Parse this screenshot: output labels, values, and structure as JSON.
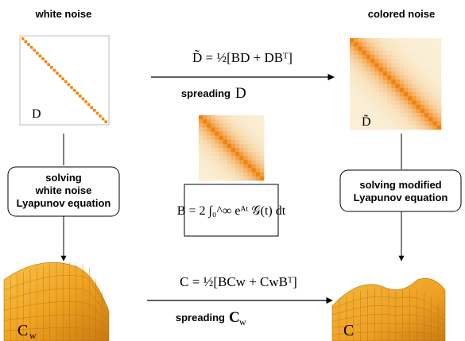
{
  "titles": {
    "left": "white noise",
    "right": "colored noise"
  },
  "matrices": [
    {
      "label": "D"
    },
    {
      "label": "D̃"
    }
  ],
  "top_arrow": {
    "equation": "D̃ = ½[BD + DBᵀ]",
    "caption": "spreading",
    "symbol": "D"
  },
  "bottom_arrow": {
    "equation": "C = ½[BCw + CwBᵀ]",
    "caption": "spreading",
    "symbol": "C",
    "subscript": "w"
  },
  "left_box": {
    "lines": [
      "solving",
      "white noise",
      "Lyapunov equation"
    ]
  },
  "right_box": {
    "lines": [
      "solving modified",
      "Lyapunov equation"
    ]
  },
  "center_box": {
    "equation": "B = 2 ∫₀^∞ eᴬᵗ 𝒢(t) dt"
  },
  "surfaces": [
    {
      "label": "C",
      "subscript": "w"
    },
    {
      "label": "C"
    }
  ]
}
